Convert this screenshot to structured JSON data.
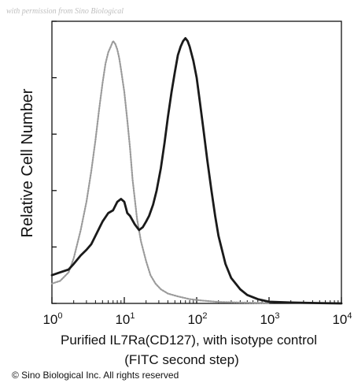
{
  "watermark": "with permission from Sino Biological",
  "copyright": "© Sino Biological Inc. All rights reserved",
  "chart_data": {
    "type": "line",
    "title": "",
    "xlabel_line1": "Purified IL7Ra(CD127), with isotype control",
    "xlabel_line2": "(FITC second step)",
    "ylabel": "Relative Cell Number",
    "x_scale": "log",
    "xlim": [
      1,
      10000
    ],
    "ylim": [
      0,
      100
    ],
    "y_ticks_shown_without_labels": true,
    "grid": false,
    "legend": "none",
    "x_ticks": [
      {
        "value": 1,
        "base": "10",
        "exp": "0"
      },
      {
        "value": 10,
        "base": "10",
        "exp": "1"
      },
      {
        "value": 100,
        "base": "10",
        "exp": "2"
      },
      {
        "value": 1000,
        "base": "10",
        "exp": "3"
      },
      {
        "value": 10000,
        "base": "10",
        "exp": "4"
      }
    ],
    "y_ticks": [
      0,
      20,
      40,
      60,
      80,
      100
    ],
    "series": [
      {
        "style": "isotype-dotted-gray",
        "color": "#9a9a9a",
        "x": [
          1,
          1.3,
          1.7,
          2,
          2.5,
          3,
          3.5,
          4,
          4.5,
          5,
          5.5,
          6,
          6.5,
          7,
          7.5,
          8,
          8.5,
          9,
          10,
          11,
          12,
          13,
          15,
          17,
          20,
          23,
          27,
          32,
          40,
          55,
          80,
          120,
          200,
          400,
          1000
        ],
        "y": [
          7,
          8,
          11,
          16,
          26,
          36,
          47,
          58,
          69,
          78,
          85,
          89,
          91,
          93,
          92,
          90,
          87,
          83,
          75,
          65,
          55,
          44,
          30,
          22,
          15,
          10,
          7,
          5,
          3.5,
          2.5,
          1.5,
          1,
          0.5,
          0.3,
          0.1
        ]
      },
      {
        "style": "il7ra-solid-black",
        "color": "#1a1a1a",
        "x": [
          1,
          1.3,
          1.7,
          2,
          2.5,
          3,
          3.5,
          4,
          5,
          6,
          7,
          8,
          9,
          10,
          11,
          12,
          14,
          16,
          18,
          20,
          22,
          25,
          28,
          32,
          36,
          40,
          45,
          50,
          55,
          60,
          65,
          70,
          75,
          80,
          90,
          100,
          110,
          125,
          140,
          160,
          180,
          200,
          250,
          300,
          400,
          500,
          700,
          1000,
          2000,
          5000,
          10000
        ],
        "y": [
          10,
          11,
          12,
          14,
          17,
          19,
          21,
          24,
          29,
          32,
          33,
          36,
          37,
          36,
          32,
          31,
          28,
          26,
          27,
          29,
          31,
          35,
          40,
          48,
          57,
          66,
          75,
          82,
          88,
          91,
          93,
          94,
          93,
          91,
          86,
          80,
          72,
          61,
          51,
          40,
          31,
          24,
          14,
          9,
          5,
          3,
          1.5,
          0.6,
          0.3,
          0.1,
          0
        ]
      }
    ]
  }
}
